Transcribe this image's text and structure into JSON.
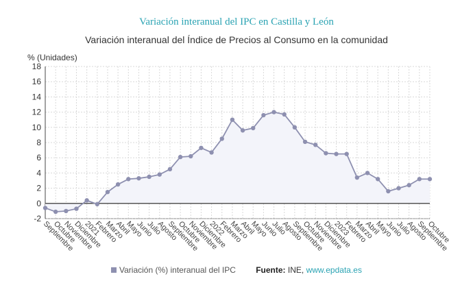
{
  "title": "Variación interanual del IPC en Castilla y León",
  "subtitle": "Variación interanual del Índice de Precios al Consumo en la comunidad",
  "colors": {
    "line": "#8e90b0",
    "fill": "#f3f4fa",
    "title": "#2aa3b3",
    "zero": "#555555",
    "grid": "#d8d8d8"
  },
  "legend": {
    "series": "Variación (%) interanual del IPC",
    "source_label": "Fuente:",
    "source_text": " INE, ",
    "source_link": "www.epdata.es"
  },
  "chart_data": {
    "type": "area",
    "ylabel": "% (Unidades)",
    "ylim": [
      -2,
      18
    ],
    "yticks": [
      -2,
      0,
      2,
      4,
      6,
      8,
      10,
      12,
      14,
      16,
      18
    ],
    "grid": true,
    "legend_position": "bottom",
    "categories": [
      "Septiembre",
      "Octubre",
      "Noviembre",
      "Diciembre",
      "2021",
      "Febrero",
      "Marzo",
      "Abril",
      "Mayo",
      "Junio",
      "Julio",
      "Agosto",
      "Septiembre",
      "Octubre",
      "Noviembre",
      "Diciembre",
      "2022",
      "Febrero",
      "Marzo",
      "Abril",
      "Mayo",
      "Junio",
      "Julio",
      "Agosto",
      "Septiembre",
      "Octubre",
      "Noviembre",
      "Diciembre",
      "2023",
      "Febrero",
      "Marzo",
      "Abril",
      "Mayo",
      "Junio",
      "Julio",
      "Agosto",
      "Septiembre",
      "Octubre"
    ],
    "series": [
      {
        "name": "Variación (%) interanual del IPC",
        "values": [
          -0.6,
          -1.1,
          -1.0,
          -0.7,
          0.4,
          -0.1,
          1.5,
          2.5,
          3.2,
          3.3,
          3.5,
          3.8,
          4.5,
          6.1,
          6.2,
          7.3,
          6.7,
          8.5,
          11.0,
          9.6,
          9.9,
          11.6,
          12.0,
          11.7,
          10.0,
          8.1,
          7.7,
          6.6,
          6.5,
          6.5,
          3.4,
          4.0,
          3.2,
          1.6,
          2.0,
          2.4,
          3.2,
          3.2
        ]
      }
    ]
  }
}
